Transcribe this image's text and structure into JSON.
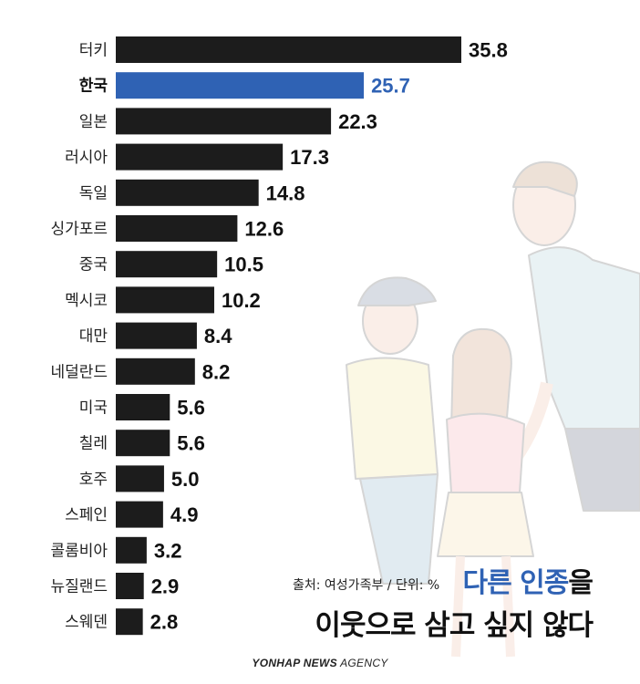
{
  "chart_data": {
    "type": "bar",
    "orientation": "horizontal",
    "categories": [
      "터키",
      "한국",
      "일본",
      "러시아",
      "독일",
      "싱가포르",
      "중국",
      "멕시코",
      "대만",
      "네덜란드",
      "미국",
      "칠레",
      "호주",
      "스페인",
      "콜롬비아",
      "뉴질랜드",
      "스웨덴"
    ],
    "values": [
      35.8,
      25.7,
      22.3,
      17.3,
      14.8,
      12.6,
      10.5,
      10.2,
      8.4,
      8.2,
      5.6,
      5.6,
      5.0,
      4.9,
      3.2,
      2.9,
      2.8
    ],
    "value_labels": [
      "35.8",
      "25.7",
      "22.3",
      "17.3",
      "14.8",
      "12.6",
      "10.5",
      "10.2",
      "8.4",
      "8.2",
      "5.6",
      "5.6",
      "5.0",
      "4.9",
      "3.2",
      "2.9",
      "2.8"
    ],
    "highlight": "한국",
    "bar_color": "#1c1c1c",
    "highlight_color": "#2f62b4",
    "grid": false,
    "xlim": [
      0,
      35.8
    ]
  },
  "source_text": "출처: 여성가족부 / 단위: %",
  "headline": {
    "line1_blue": "다른 인종",
    "line1_black": "을",
    "line2": "이웃으로 삼고 싶지 않다"
  },
  "credit": {
    "bold": "YONHAP NEWS",
    "light": " AGENCY"
  }
}
